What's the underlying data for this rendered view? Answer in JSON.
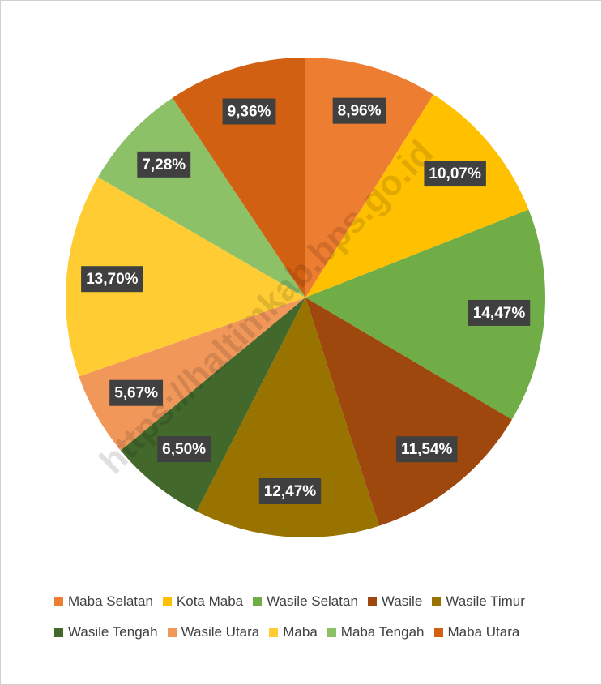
{
  "chart_data": {
    "type": "pie",
    "categories": [
      "Maba Selatan",
      "Kota Maba",
      "Wasile Selatan",
      "Wasile",
      "Wasile Timur",
      "Wasile Tengah",
      "Wasile Utara",
      "Maba",
      "Maba Tengah",
      "Maba Utara"
    ],
    "values": [
      8.96,
      10.07,
      14.47,
      11.54,
      12.47,
      6.5,
      5.67,
      13.7,
      7.28,
      9.36
    ],
    "value_labels": [
      "8,96%",
      "10,07%",
      "14,47%",
      "11,54%",
      "12,47%",
      "6,50%",
      "5,67%",
      "13,70%",
      "7,28%",
      "9,36%"
    ],
    "colors": [
      "#ED7D31",
      "#FFC000",
      "#70AD47",
      "#9E480E",
      "#997300",
      "#43682B",
      "#F1975A",
      "#FFCD33",
      "#8CC168",
      "#D26012"
    ],
    "watermark": "https://haltimkab.bps.go.id"
  }
}
